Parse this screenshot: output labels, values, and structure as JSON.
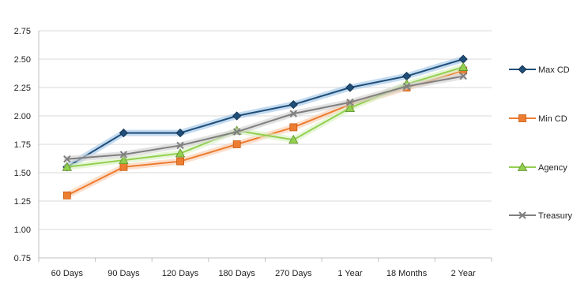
{
  "chart_data": {
    "type": "line",
    "title": "",
    "xlabel": "",
    "ylabel": "",
    "categories": [
      "60 Days",
      "90 Days",
      "120 Days",
      "180 Days",
      "270 Days",
      "1 Year",
      "18 Months",
      "2 Year"
    ],
    "ylim": [
      0.75,
      2.75
    ],
    "yticks": [
      "0.75",
      "1.00",
      "1.25",
      "1.50",
      "1.75",
      "2.00",
      "2.25",
      "2.50",
      "2.75"
    ],
    "grid": "horizontal",
    "legend_position": "right",
    "series": [
      {
        "name": "Max CD",
        "values": [
          1.55,
          1.85,
          1.85,
          2.0,
          2.1,
          2.25,
          2.35,
          2.5
        ],
        "color": "#1f4e79",
        "glow": "#9dc3e6",
        "marker": "diamond"
      },
      {
        "name": "Min CD",
        "values": [
          1.3,
          1.55,
          1.6,
          1.75,
          1.9,
          2.1,
          2.25,
          2.4
        ],
        "color": "#ed7d31",
        "glow": "#f8cbad",
        "marker": "square"
      },
      {
        "name": "Agency",
        "values": [
          1.55,
          1.61,
          1.67,
          1.87,
          1.79,
          2.07,
          2.28,
          2.43
        ],
        "color": "#92d050",
        "glow": "#d9f0c0",
        "marker": "triangle"
      },
      {
        "name": "Treasury",
        "values": [
          1.62,
          1.66,
          1.74,
          1.86,
          2.02,
          2.12,
          2.26,
          2.35
        ],
        "color": "#7f7f7f",
        "glow": "#d0d0d0",
        "marker": "x"
      }
    ]
  }
}
